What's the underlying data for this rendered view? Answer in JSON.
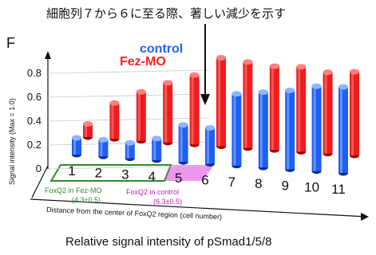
{
  "annotation": "細胞列７から６に至る際、著しい減少を示す",
  "caption": "Relative signal intensity of pSmad1/5/8",
  "corner_label": "F",
  "colors": {
    "control": "#1f5fff",
    "fez": "#ff1f1f",
    "fez_region": "#2e8b2e",
    "control_region": "#c020b0"
  },
  "regions": {
    "fez_mo": {
      "label": "FoxQ2 in Fez-MO",
      "value": "(4.3±0.5)"
    },
    "control": {
      "label": "FoxQ2 in control",
      "value": "(6.3±0.5)"
    }
  },
  "chart_data": {
    "type": "bar",
    "title": "",
    "xlabel": "Distance from the center of FoxQ2 region (cell number)",
    "ylabel": "Signal intensity (Max = 1.0)",
    "ylim": [
      0,
      0.8
    ],
    "yticks": [
      "0",
      "0.2",
      "0.4",
      "0.6",
      "0.8"
    ],
    "categories": [
      "1",
      "2",
      "3",
      "4",
      "5",
      "6",
      "7",
      "8",
      "9",
      "10",
      "11"
    ],
    "series": [
      {
        "name": "control",
        "values": [
          0.14,
          0.14,
          0.13,
          0.18,
          0.31,
          0.3,
          0.6,
          0.63,
          0.66,
          0.71,
          0.72
        ]
      },
      {
        "name": "Fez-MO",
        "values": [
          0.11,
          0.3,
          0.41,
          0.5,
          0.58,
          0.74,
          0.72,
          0.7,
          0.71,
          0.68,
          0.7
        ]
      }
    ]
  }
}
